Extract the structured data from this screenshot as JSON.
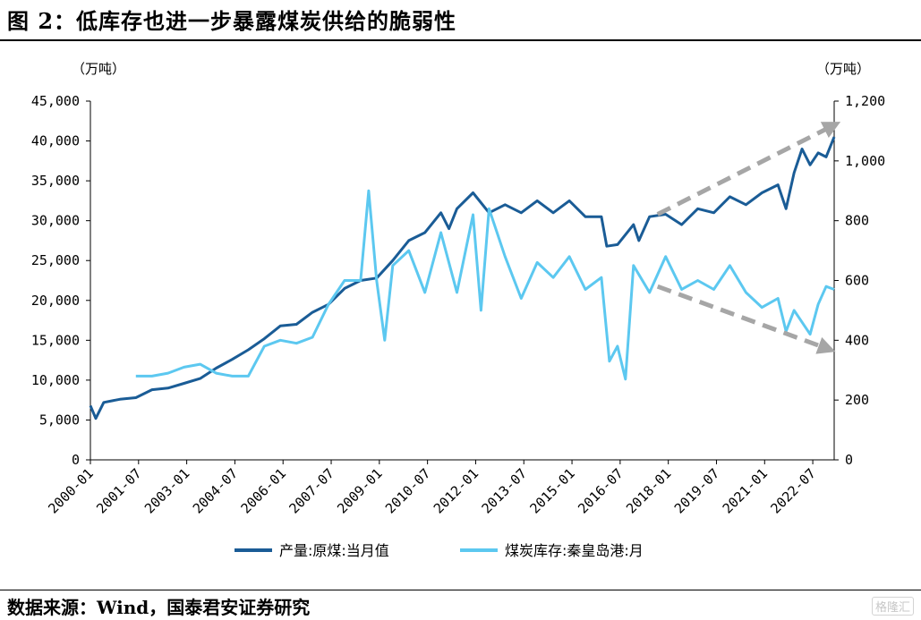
{
  "header": {
    "title": "图 2：低库存也进一步暴露煤炭供给的脆弱性"
  },
  "footer": {
    "source": "数据来源：Wind，国泰君安证券研究",
    "watermark": "格隆汇"
  },
  "chart_data": {
    "type": "line",
    "left_unit": "（万吨）",
    "right_unit": "（万吨）",
    "x_tick_labels": [
      "2000-01",
      "2001-07",
      "2003-01",
      "2004-07",
      "2006-01",
      "2007-07",
      "2009-01",
      "2010-07",
      "2012-01",
      "2013-07",
      "2015-01",
      "2016-07",
      "2018-01",
      "2019-07",
      "2021-01",
      "2022-07"
    ],
    "x_range": [
      "2000-01",
      "2023-03"
    ],
    "y_left": {
      "range": [
        0,
        45000
      ],
      "ticks": [
        "0",
        "5,000",
        "10,000",
        "15,000",
        "20,000",
        "25,000",
        "30,000",
        "35,000",
        "40,000",
        "45,000"
      ]
    },
    "y_right": {
      "range": [
        0,
        1200
      ],
      "ticks": [
        "0",
        "200",
        "400",
        "600",
        "800",
        "1,000",
        "1,200"
      ]
    },
    "grid": false,
    "legend_position": "bottom",
    "colors": {
      "production": "#1A5C96",
      "inventory": "#5CC8F0",
      "trend_arrow": "#A6A6A6"
    },
    "series": [
      {
        "name": "产量:原煤:当月值",
        "axis": "left",
        "points": [
          [
            "2000-01",
            6800
          ],
          [
            "2000-03",
            5200
          ],
          [
            "2000-06",
            7200
          ],
          [
            "2000-12",
            7600
          ],
          [
            "2001-06",
            7800
          ],
          [
            "2001-12",
            8800
          ],
          [
            "2002-06",
            9000
          ],
          [
            "2002-12",
            9600
          ],
          [
            "2003-06",
            10200
          ],
          [
            "2003-12",
            11500
          ],
          [
            "2004-06",
            12600
          ],
          [
            "2004-12",
            13800
          ],
          [
            "2005-06",
            15200
          ],
          [
            "2005-12",
            16800
          ],
          [
            "2006-06",
            17000
          ],
          [
            "2006-12",
            18500
          ],
          [
            "2007-06",
            19500
          ],
          [
            "2007-12",
            21500
          ],
          [
            "2008-06",
            22500
          ],
          [
            "2008-12",
            22800
          ],
          [
            "2009-06",
            25000
          ],
          [
            "2009-12",
            27500
          ],
          [
            "2010-06",
            28500
          ],
          [
            "2010-12",
            31000
          ],
          [
            "2011-03",
            29000
          ],
          [
            "2011-06",
            31500
          ],
          [
            "2011-12",
            33500
          ],
          [
            "2012-06",
            31000
          ],
          [
            "2012-12",
            32000
          ],
          [
            "2013-06",
            31000
          ],
          [
            "2013-12",
            32500
          ],
          [
            "2014-06",
            31000
          ],
          [
            "2014-12",
            32500
          ],
          [
            "2015-06",
            30500
          ],
          [
            "2015-12",
            30500
          ],
          [
            "2016-02",
            26800
          ],
          [
            "2016-06",
            27000
          ],
          [
            "2016-12",
            29500
          ],
          [
            "2017-02",
            27500
          ],
          [
            "2017-06",
            30500
          ],
          [
            "2017-12",
            30800
          ],
          [
            "2018-06",
            29500
          ],
          [
            "2018-12",
            31500
          ],
          [
            "2019-06",
            31000
          ],
          [
            "2019-12",
            33000
          ],
          [
            "2020-06",
            32000
          ],
          [
            "2020-12",
            33500
          ],
          [
            "2021-06",
            34500
          ],
          [
            "2021-09",
            31500
          ],
          [
            "2021-12",
            36000
          ],
          [
            "2022-03",
            39000
          ],
          [
            "2022-06",
            37000
          ],
          [
            "2022-09",
            38500
          ],
          [
            "2022-12",
            38000
          ],
          [
            "2023-03",
            40500
          ]
        ]
      },
      {
        "name": "煤炭库存:秦皇岛港:月",
        "axis": "right",
        "points": [
          [
            "2001-06",
            280
          ],
          [
            "2001-12",
            280
          ],
          [
            "2002-06",
            290
          ],
          [
            "2002-12",
            310
          ],
          [
            "2003-06",
            320
          ],
          [
            "2003-12",
            290
          ],
          [
            "2004-06",
            280
          ],
          [
            "2004-12",
            280
          ],
          [
            "2005-06",
            380
          ],
          [
            "2005-12",
            400
          ],
          [
            "2006-06",
            390
          ],
          [
            "2006-12",
            410
          ],
          [
            "2007-06",
            520
          ],
          [
            "2007-12",
            600
          ],
          [
            "2008-06",
            600
          ],
          [
            "2008-09",
            900
          ],
          [
            "2008-12",
            600
          ],
          [
            "2009-03",
            400
          ],
          [
            "2009-06",
            650
          ],
          [
            "2009-12",
            700
          ],
          [
            "2010-06",
            560
          ],
          [
            "2010-12",
            760
          ],
          [
            "2011-06",
            560
          ],
          [
            "2011-12",
            820
          ],
          [
            "2012-03",
            500
          ],
          [
            "2012-06",
            840
          ],
          [
            "2012-12",
            680
          ],
          [
            "2013-06",
            540
          ],
          [
            "2013-12",
            660
          ],
          [
            "2014-06",
            610
          ],
          [
            "2014-12",
            680
          ],
          [
            "2015-06",
            570
          ],
          [
            "2015-12",
            610
          ],
          [
            "2016-03",
            330
          ],
          [
            "2016-06",
            380
          ],
          [
            "2016-09",
            270
          ],
          [
            "2016-12",
            650
          ],
          [
            "2017-06",
            560
          ],
          [
            "2017-12",
            680
          ],
          [
            "2018-06",
            570
          ],
          [
            "2018-12",
            600
          ],
          [
            "2019-06",
            570
          ],
          [
            "2019-12",
            650
          ],
          [
            "2020-06",
            560
          ],
          [
            "2020-12",
            510
          ],
          [
            "2021-06",
            540
          ],
          [
            "2021-09",
            430
          ],
          [
            "2021-12",
            500
          ],
          [
            "2022-06",
            420
          ],
          [
            "2022-09",
            520
          ],
          [
            "2022-12",
            580
          ],
          [
            "2023-03",
            570
          ]
        ]
      }
    ]
  }
}
